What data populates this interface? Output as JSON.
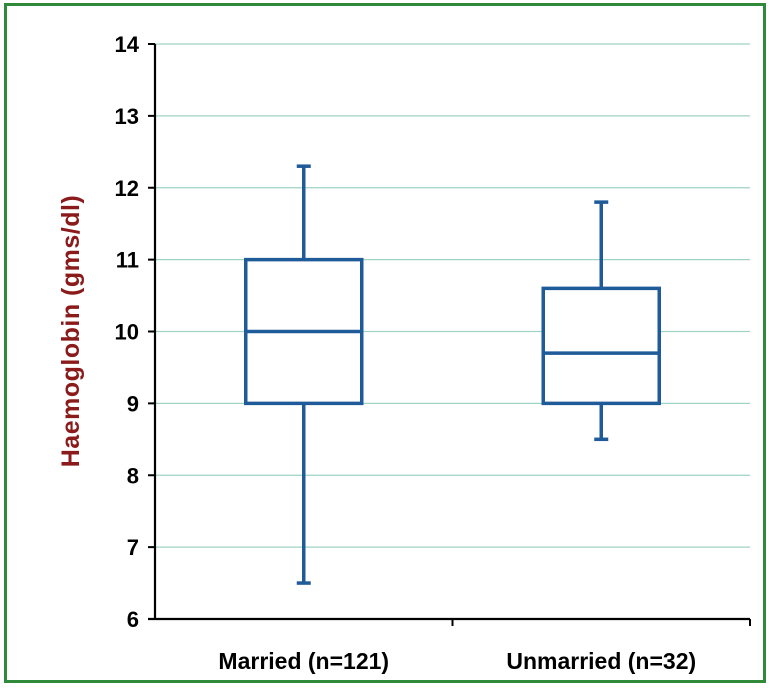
{
  "chart_data": {
    "type": "box",
    "title": "",
    "xlabel": "",
    "ylabel": "Haemoglobin (gms/dl)",
    "ylim": [
      6,
      14
    ],
    "yticks": [
      "6",
      "7",
      "8",
      "9",
      "10",
      "11",
      "12",
      "13",
      "14"
    ],
    "grid": true,
    "categories": [
      "Married (n=121)",
      "Unmarried (n=32)"
    ],
    "boxes": [
      {
        "category": "Married (n=121)",
        "min": 6.5,
        "q1": 9.0,
        "median": 10.0,
        "q3": 11.0,
        "max": 12.3
      },
      {
        "category": "Unmarried (n=32)",
        "min": 8.5,
        "q1": 9.0,
        "median": 9.7,
        "q3": 10.6,
        "max": 11.8
      }
    ],
    "colors": {
      "box": "#1f5a99",
      "grid": "#9fd3c4",
      "axis": "#000000",
      "ylabel": "#8b1a1a",
      "frame": "#2f8a3a"
    }
  }
}
